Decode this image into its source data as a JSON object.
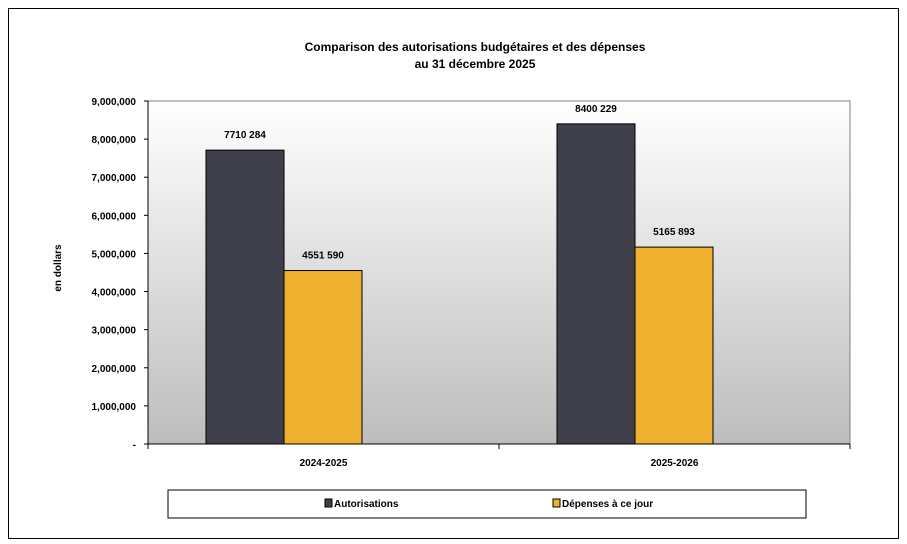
{
  "chart_data": {
    "type": "bar",
    "title": "Comparison des autorisations budgétaires et des dépenses",
    "subtitle": "au 31 décembre 2025",
    "xlabel": "",
    "ylabel": "en dollars",
    "ylim": [
      0,
      9000000
    ],
    "yticks": [
      "-",
      "1,000,000",
      "2,000,000",
      "3,000,000",
      "4,000,000",
      "5,000,000",
      "6,000,000",
      "7,000,000",
      "8,000,000",
      "9,000,000"
    ],
    "categories": [
      "2024-2025",
      "2025-2026"
    ],
    "series": [
      {
        "name": "Autorisations",
        "values": [
          7710284,
          8400229
        ],
        "labels": [
          "7710 284",
          "8400 229"
        ],
        "color": "#3f404b"
      },
      {
        "name": "Dépenses à ce jour",
        "values": [
          4551590,
          5165893
        ],
        "labels": [
          "4551 590",
          "5165 893"
        ],
        "color": "#efb030"
      }
    ],
    "grid": false,
    "legend": "bottom"
  }
}
